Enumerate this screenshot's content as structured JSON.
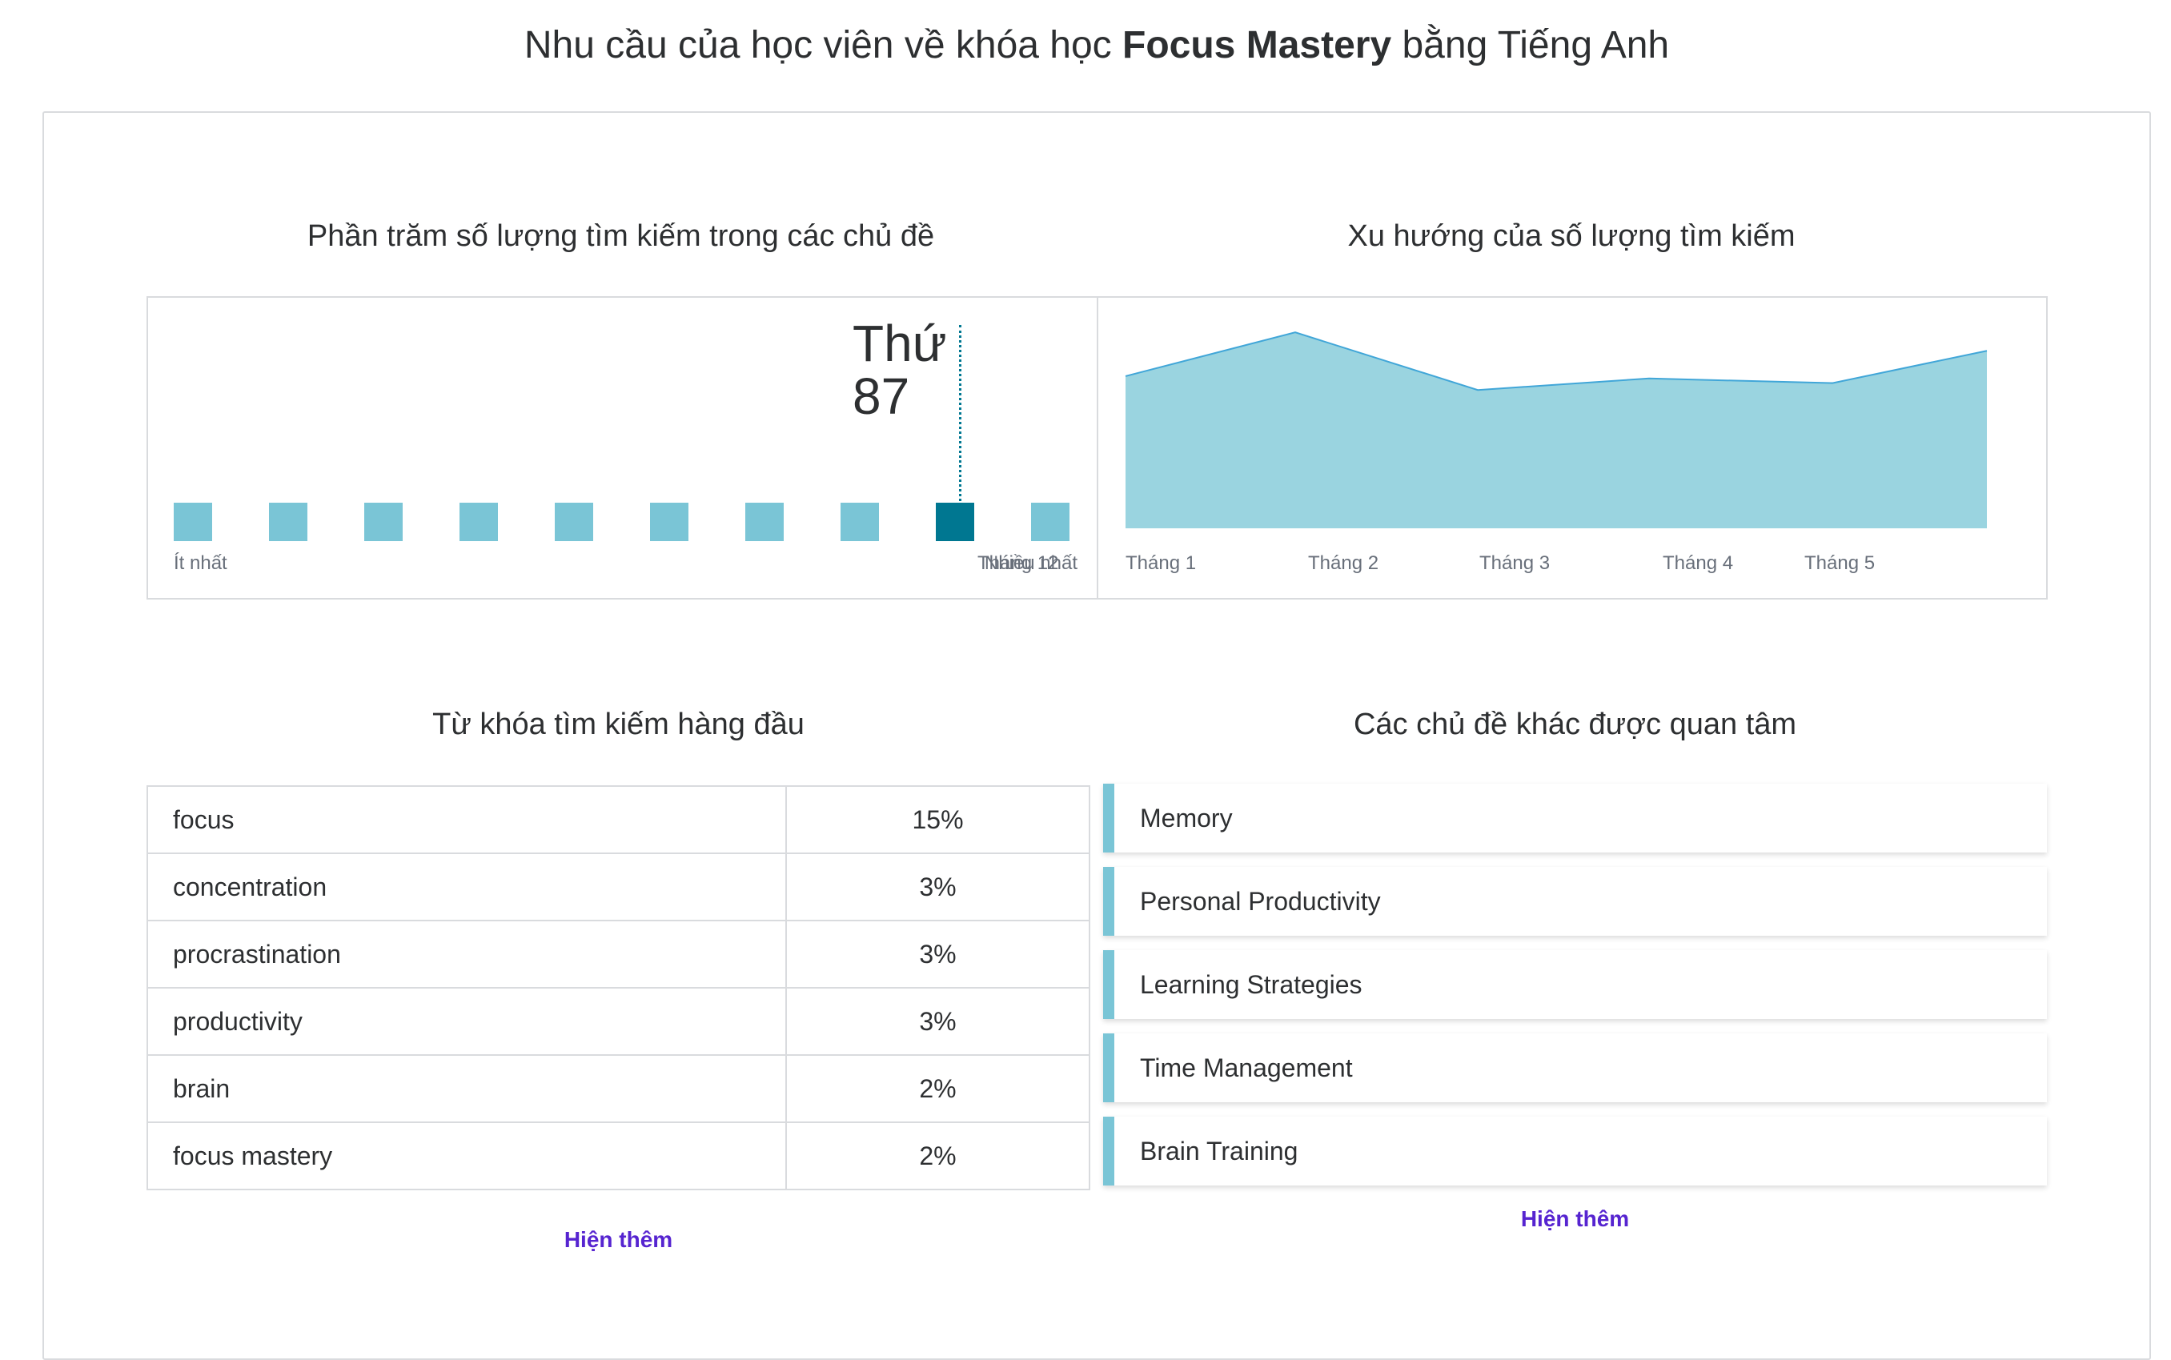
{
  "header": {
    "title_prefix": "Nhu cầu của học viên về khóa học ",
    "title_bold": "Focus Mastery",
    "title_suffix": " bằng Tiếng Anh"
  },
  "ranking": {
    "title": "Phần trăm số lượng tìm kiếm trong các chủ đề",
    "rank_text": "Thứ 87",
    "least_label": "Ít nhất",
    "most_label": "Nhiều nhất",
    "active_index": 8,
    "square_count": 10
  },
  "trend": {
    "title": "Xu hướng của số lượng tìm kiếm"
  },
  "chart_data": {
    "type": "area",
    "x": [
      "Tháng 12",
      "Tháng 1",
      "Tháng 2",
      "Tháng 3",
      "Tháng 4",
      "Tháng 5"
    ],
    "values": [
      66,
      85,
      60,
      65,
      63,
      77
    ],
    "ylim": [
      0,
      100
    ],
    "grid": false,
    "color": "#9ad4e0",
    "line_color": "#41a6d8"
  },
  "keywords": {
    "title": "Từ khóa tìm kiếm hàng đầu",
    "rows": [
      {
        "term": "focus",
        "pct": "15%"
      },
      {
        "term": "concentration",
        "pct": "3%"
      },
      {
        "term": "procrastination",
        "pct": "3%"
      },
      {
        "term": "productivity",
        "pct": "3%"
      },
      {
        "term": "brain",
        "pct": "2%"
      },
      {
        "term": "focus mastery",
        "pct": "2%"
      }
    ],
    "show_more": "Hiện thêm"
  },
  "topics": {
    "title": "Các chủ đề khác được quan tâm",
    "items": [
      "Memory",
      "Personal Productivity",
      "Learning Strategies",
      "Time Management",
      "Brain Training"
    ],
    "show_more": "Hiện thêm"
  },
  "colors": {
    "accent": "#7ac5d6",
    "accent_dark": "#007791",
    "link": "#5624d0"
  }
}
